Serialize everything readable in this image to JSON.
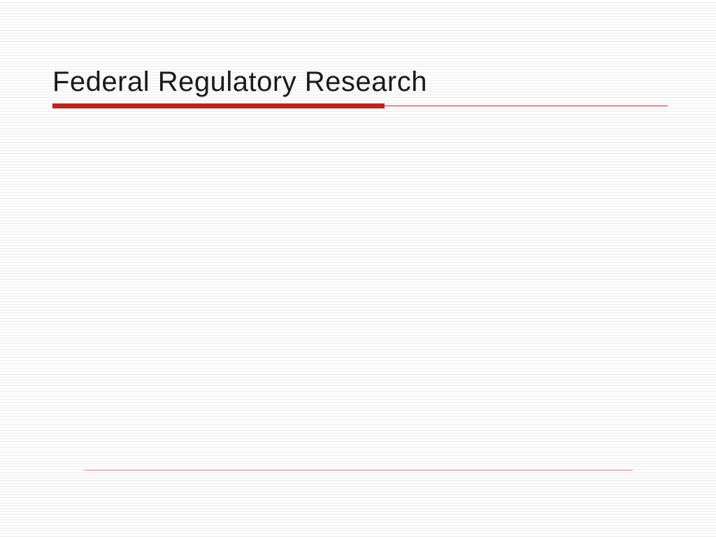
{
  "slide": {
    "title": "Federal Regulatory Research",
    "title_fontsize": 40,
    "title_color": "#1a1a1a",
    "accent_color": "#c42020",
    "bottom_line_color": "#d89090",
    "background_color": "#ffffff",
    "line_color": "#ebebeb",
    "underline_thick_width": 475,
    "underline_thin_width": 880,
    "underline_thick_height": 7,
    "font_family": "Verdana"
  }
}
